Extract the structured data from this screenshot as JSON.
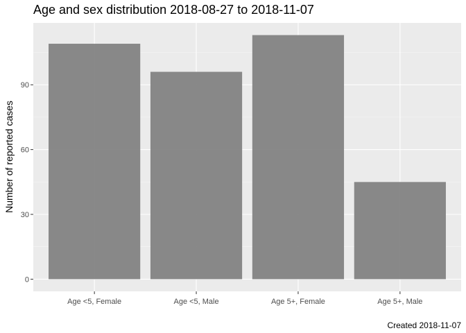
{
  "chart_data": {
    "type": "bar",
    "title": "Age and sex distribution 2018-08-27 to 2018-11-07",
    "caption": "Created 2018-11-07",
    "xlabel": "",
    "ylabel": "Number of reported cases",
    "categories": [
      "Age <5, Female",
      "Age <5, Male",
      "Age 5+, Female",
      "Age 5+, Male"
    ],
    "values": [
      109,
      96,
      113,
      45
    ],
    "ylim": [
      -5.65,
      118.65
    ],
    "yticks": [
      0,
      30,
      60,
      90
    ],
    "grid": true,
    "legend": "none",
    "colors": {
      "panel_background": "#ebebeb",
      "grid_major": "#ffffff",
      "bar_fill": "#808080",
      "tick_text": "#4d4d4d",
      "tick_mark": "#333333"
    }
  }
}
